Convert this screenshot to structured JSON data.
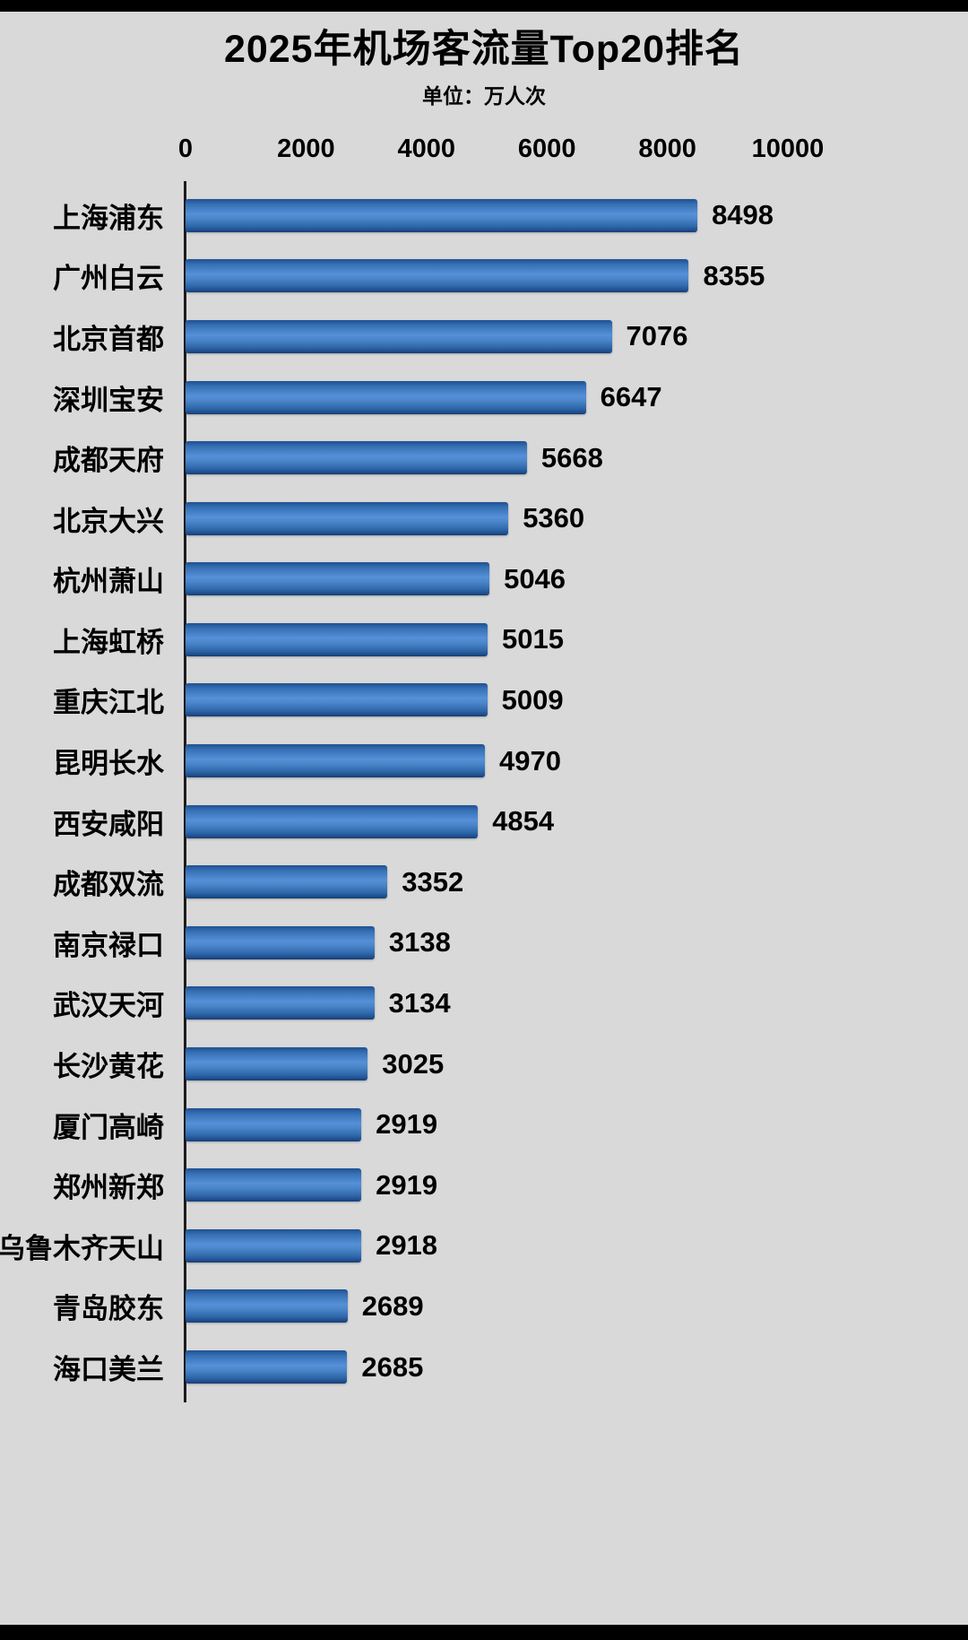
{
  "header": {
    "title": "2025年机场客流量Top20排名",
    "subtitle": "单位：万人次"
  },
  "chart_data": {
    "type": "bar",
    "orientation": "horizontal",
    "title": "2025年机场客流量Top20排名",
    "subtitle": "单位：万人次",
    "xlabel": "",
    "ylabel": "",
    "xlim": [
      0,
      10000
    ],
    "x_ticks": [
      "0",
      "2000",
      "4000",
      "6000",
      "8000",
      "10000"
    ],
    "x_tick_values": [
      0,
      2000,
      4000,
      6000,
      8000,
      10000
    ],
    "grid": false,
    "legend": "none",
    "bar_color": "#3b76bc",
    "categories": [
      "上海浦东",
      "广州白云",
      "北京首都",
      "深圳宝安",
      "成都天府",
      "北京大兴",
      "杭州萧山",
      "上海虹桥",
      "重庆江北",
      "昆明长水",
      "西安咸阳",
      "成都双流",
      "南京禄口",
      "武汉天河",
      "长沙黄花",
      "厦门高崎",
      "郑州新郑",
      "乌鲁木齐天山",
      "青岛胶东",
      "海口美兰"
    ],
    "values": [
      8498,
      8355,
      7076,
      6647,
      5668,
      5360,
      5046,
      5015,
      5009,
      4970,
      4854,
      3352,
      3138,
      3134,
      3025,
      2919,
      2919,
      2918,
      2689,
      2685
    ]
  },
  "colors": {
    "background": "#d9d9d9",
    "frame": "#000000",
    "bar_top": "#1e5092",
    "bar_mid": "#5590d8",
    "bar_bottom": "#173f78",
    "text": "#000000"
  }
}
